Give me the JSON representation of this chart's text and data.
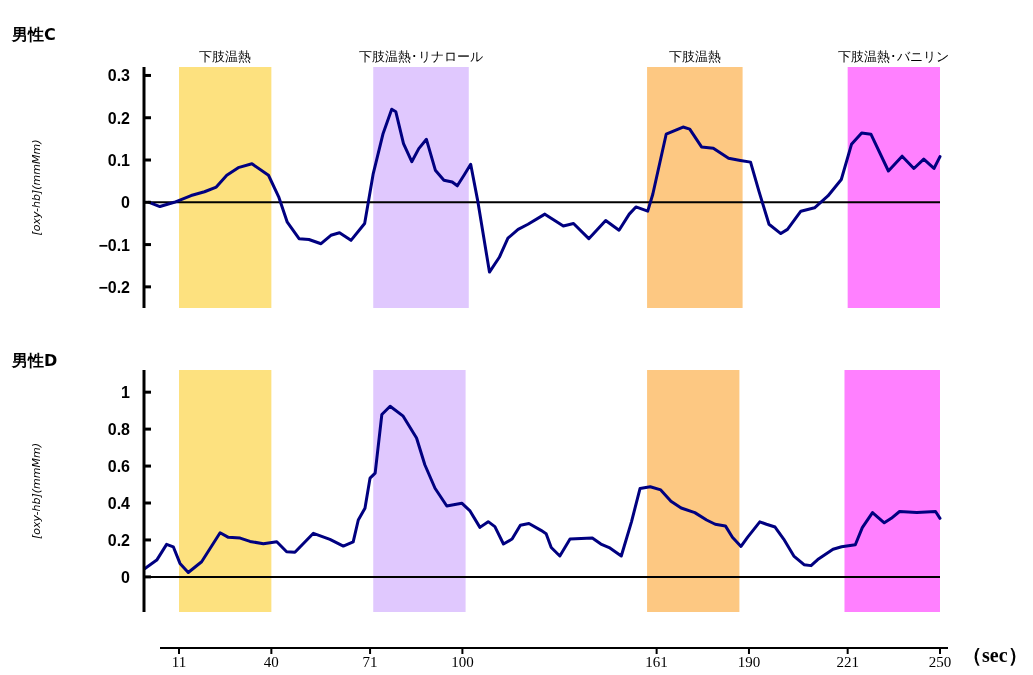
{
  "chart_data": [
    {
      "type": "line",
      "title": "男性C",
      "ylabel": "[oxy-hb](mmMm)",
      "xlim": [
        0,
        250
      ],
      "ylim": [
        -0.25,
        0.32
      ],
      "yticks": [
        0.3,
        0.2,
        0.1,
        0,
        {
          "value": -0.1,
          "label": "−0.1"
        },
        {
          "value": -0.2,
          "label": "−0.2"
        }
      ],
      "tick_labels": "y",
      "grid": false,
      "marker": "none",
      "line_style": "solid",
      "ref_lines": [
        {
          "axis": "y",
          "value": 0,
          "color": "#000000"
        }
      ],
      "bands": [
        {
          "axis": "x",
          "from": 11,
          "to": 40,
          "label": "下肢温熱",
          "color": "#fde17f"
        },
        {
          "axis": "x",
          "from": 72,
          "to": 102,
          "label": "下肢温熱･リナロール",
          "color": "#e0c8fe"
        },
        {
          "axis": "x",
          "from": 158,
          "to": 188,
          "label": "下肢温熱",
          "color": "#fdc882"
        },
        {
          "axis": "x",
          "from": 221,
          "to": 250,
          "label": "下肢温熱･バニリン",
          "color": "#ff80ff"
        }
      ],
      "series": [
        {
          "color": "#000080",
          "x": [
            1.6,
            5,
            9.5,
            14.8,
            19,
            22.7,
            26,
            29.6,
            33.9,
            39.1,
            42.3,
            45,
            48.7,
            51.8,
            55.6,
            58.7,
            61.4,
            65,
            69.3,
            72,
            75.1,
            77.8,
            79.1,
            81.5,
            84.1,
            86.3,
            88.7,
            91.5,
            94.2,
            96.8,
            98.4,
            100.5,
            102.6,
            104.8,
            108.5,
            111.6,
            114.3,
            117.5,
            120.6,
            125.9,
            131.7,
            134.9,
            139.7,
            145,
            149.2,
            152.4,
            154.5,
            158.2,
            159.8,
            164,
            169.3,
            171.4,
            175.1,
            178.8,
            183.6,
            187.3,
            190.5,
            193.1,
            196.3,
            200,
            202.1,
            206.3,
            210.6,
            214.8,
            219,
            222.2,
            225.4,
            228.3,
            233.8,
            238.1,
            241.8,
            244.9,
            248.1,
            250
          ],
          "values": [
            0,
            -0.01,
            0,
            0.016,
            0.025,
            0.036,
            0.064,
            0.082,
            0.091,
            0.064,
            0.013,
            -0.047,
            -0.086,
            -0.088,
            -0.098,
            -0.078,
            -0.072,
            -0.09,
            -0.05,
            0.068,
            0.163,
            0.22,
            0.214,
            0.139,
            0.096,
            0.127,
            0.149,
            0.076,
            0.052,
            0.048,
            0.039,
            0.064,
            0.09,
            0.004,
            -0.165,
            -0.13,
            -0.085,
            -0.064,
            -0.052,
            -0.028,
            -0.056,
            -0.05,
            -0.086,
            -0.043,
            -0.066,
            -0.028,
            -0.011,
            -0.021,
            0.019,
            0.161,
            0.178,
            0.173,
            0.131,
            0.128,
            0.104,
            0.099,
            0.095,
            0.027,
            -0.052,
            -0.074,
            -0.064,
            -0.021,
            -0.013,
            0.015,
            0.054,
            0.137,
            0.164,
            0.161,
            0.074,
            0.109,
            0.08,
            0.102,
            0.08,
            0.108
          ]
        }
      ]
    },
    {
      "type": "line",
      "title": "男性D",
      "ylabel": "[oxy-hb](mmMm)",
      "xlabel": "（sec）",
      "xlim": [
        0,
        250
      ],
      "xticks": [
        11,
        40,
        71,
        100,
        161,
        190,
        221,
        250
      ],
      "ylim": [
        -0.19,
        1.12
      ],
      "yticks": [
        1,
        0.8,
        0.6,
        0.4,
        0.2,
        0
      ],
      "grid": false,
      "marker": "none",
      "line_style": "solid",
      "ref_lines": [
        {
          "axis": "y",
          "value": 0,
          "color": "#000000"
        }
      ],
      "bands": [
        {
          "axis": "x",
          "from": 11,
          "to": 40,
          "color": "#fde17f"
        },
        {
          "axis": "x",
          "from": 72,
          "to": 101,
          "color": "#e0c8fe"
        },
        {
          "axis": "x",
          "from": 158,
          "to": 187,
          "color": "#fdc882"
        },
        {
          "axis": "x",
          "from": 220,
          "to": 250,
          "color": "#ff80ff"
        }
      ],
      "series": [
        {
          "color": "#000080",
          "x": [
            0.3,
            4,
            7.1,
            9.2,
            11.3,
            13.9,
            18.1,
            23.9,
            26.5,
            30.2,
            33.3,
            37.5,
            41.7,
            44.8,
            47.4,
            53.2,
            58.4,
            62.6,
            65.7,
            67.3,
            69.4,
            71,
            72.6,
            74.7,
            77.3,
            81.4,
            85.6,
            88.2,
            91.4,
            95.1,
            99.8,
            102.4,
            105.5,
            108.1,
            110.2,
            112.9,
            115.6,
            118.2,
            120.9,
            124.7,
            126.3,
            127.9,
            130.6,
            133.8,
            140.8,
            143.5,
            146.1,
            149.9,
            153.1,
            155.8,
            159,
            162.3,
            165.5,
            168.7,
            173,
            176.7,
            179.4,
            182.6,
            184.8,
            187.5,
            189.6,
            193.4,
            195.5,
            198.2,
            200.9,
            204.1,
            207.3,
            209.5,
            211.6,
            216.4,
            219.1,
            223.4,
            225.6,
            228.8,
            232.5,
            234.7,
            237.3,
            242.7,
            248.6,
            250
          ],
          "values": [
            0.046,
            0.091,
            0.176,
            0.163,
            0.073,
            0.024,
            0.082,
            0.239,
            0.214,
            0.21,
            0.192,
            0.179,
            0.19,
            0.136,
            0.133,
            0.236,
            0.203,
            0.167,
            0.19,
            0.308,
            0.372,
            0.535,
            0.562,
            0.879,
            0.924,
            0.87,
            0.752,
            0.607,
            0.48,
            0.384,
            0.399,
            0.357,
            0.268,
            0.299,
            0.272,
            0.178,
            0.205,
            0.28,
            0.289,
            0.252,
            0.234,
            0.159,
            0.113,
            0.205,
            0.211,
            0.178,
            0.159,
            0.113,
            0.298,
            0.479,
            0.488,
            0.471,
            0.41,
            0.373,
            0.348,
            0.308,
            0.285,
            0.276,
            0.215,
            0.165,
            0.215,
            0.298,
            0.285,
            0.27,
            0.205,
            0.113,
            0.066,
            0.061,
            0.094,
            0.15,
            0.163,
            0.174,
            0.267,
            0.348,
            0.293,
            0.317,
            0.354,
            0.348,
            0.354,
            0.317
          ]
        }
      ]
    }
  ]
}
